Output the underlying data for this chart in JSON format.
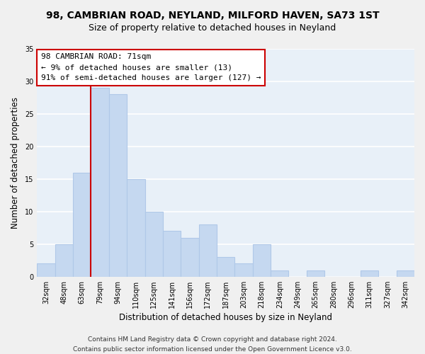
{
  "title": "98, CAMBRIAN ROAD, NEYLAND, MILFORD HAVEN, SA73 1ST",
  "subtitle": "Size of property relative to detached houses in Neyland",
  "xlabel": "Distribution of detached houses by size in Neyland",
  "ylabel": "Number of detached properties",
  "footer_line1": "Contains HM Land Registry data © Crown copyright and database right 2024.",
  "footer_line2": "Contains public sector information licensed under the Open Government Licence v3.0.",
  "bin_labels": [
    "32sqm",
    "48sqm",
    "63sqm",
    "79sqm",
    "94sqm",
    "110sqm",
    "125sqm",
    "141sqm",
    "156sqm",
    "172sqm",
    "187sqm",
    "203sqm",
    "218sqm",
    "234sqm",
    "249sqm",
    "265sqm",
    "280sqm",
    "296sqm",
    "311sqm",
    "327sqm",
    "342sqm"
  ],
  "bar_heights": [
    2,
    5,
    16,
    29,
    28,
    15,
    10,
    7,
    6,
    8,
    3,
    2,
    5,
    1,
    0,
    1,
    0,
    0,
    1,
    0,
    1
  ],
  "bar_color": "#c5d8f0",
  "bar_edge_color": "#b0c8e8",
  "annotation_box_text": "98 CAMBRIAN ROAD: 71sqm\n← 9% of detached houses are smaller (13)\n91% of semi-detached houses are larger (127) →",
  "annotation_box_edge_color": "#cc0000",
  "annotation_box_face_color": "#ffffff",
  "vline_color": "#cc0000",
  "vline_x": 3.0,
  "ylim": [
    0,
    35
  ],
  "yticks": [
    0,
    5,
    10,
    15,
    20,
    25,
    30,
    35
  ],
  "plot_bg_color": "#e8f0f8",
  "fig_bg_color": "#f0f0f0",
  "grid_color": "#ffffff",
  "title_fontsize": 10,
  "subtitle_fontsize": 9,
  "axis_label_fontsize": 8.5,
  "tick_fontsize": 7,
  "annotation_fontsize": 8,
  "footer_fontsize": 6.5
}
